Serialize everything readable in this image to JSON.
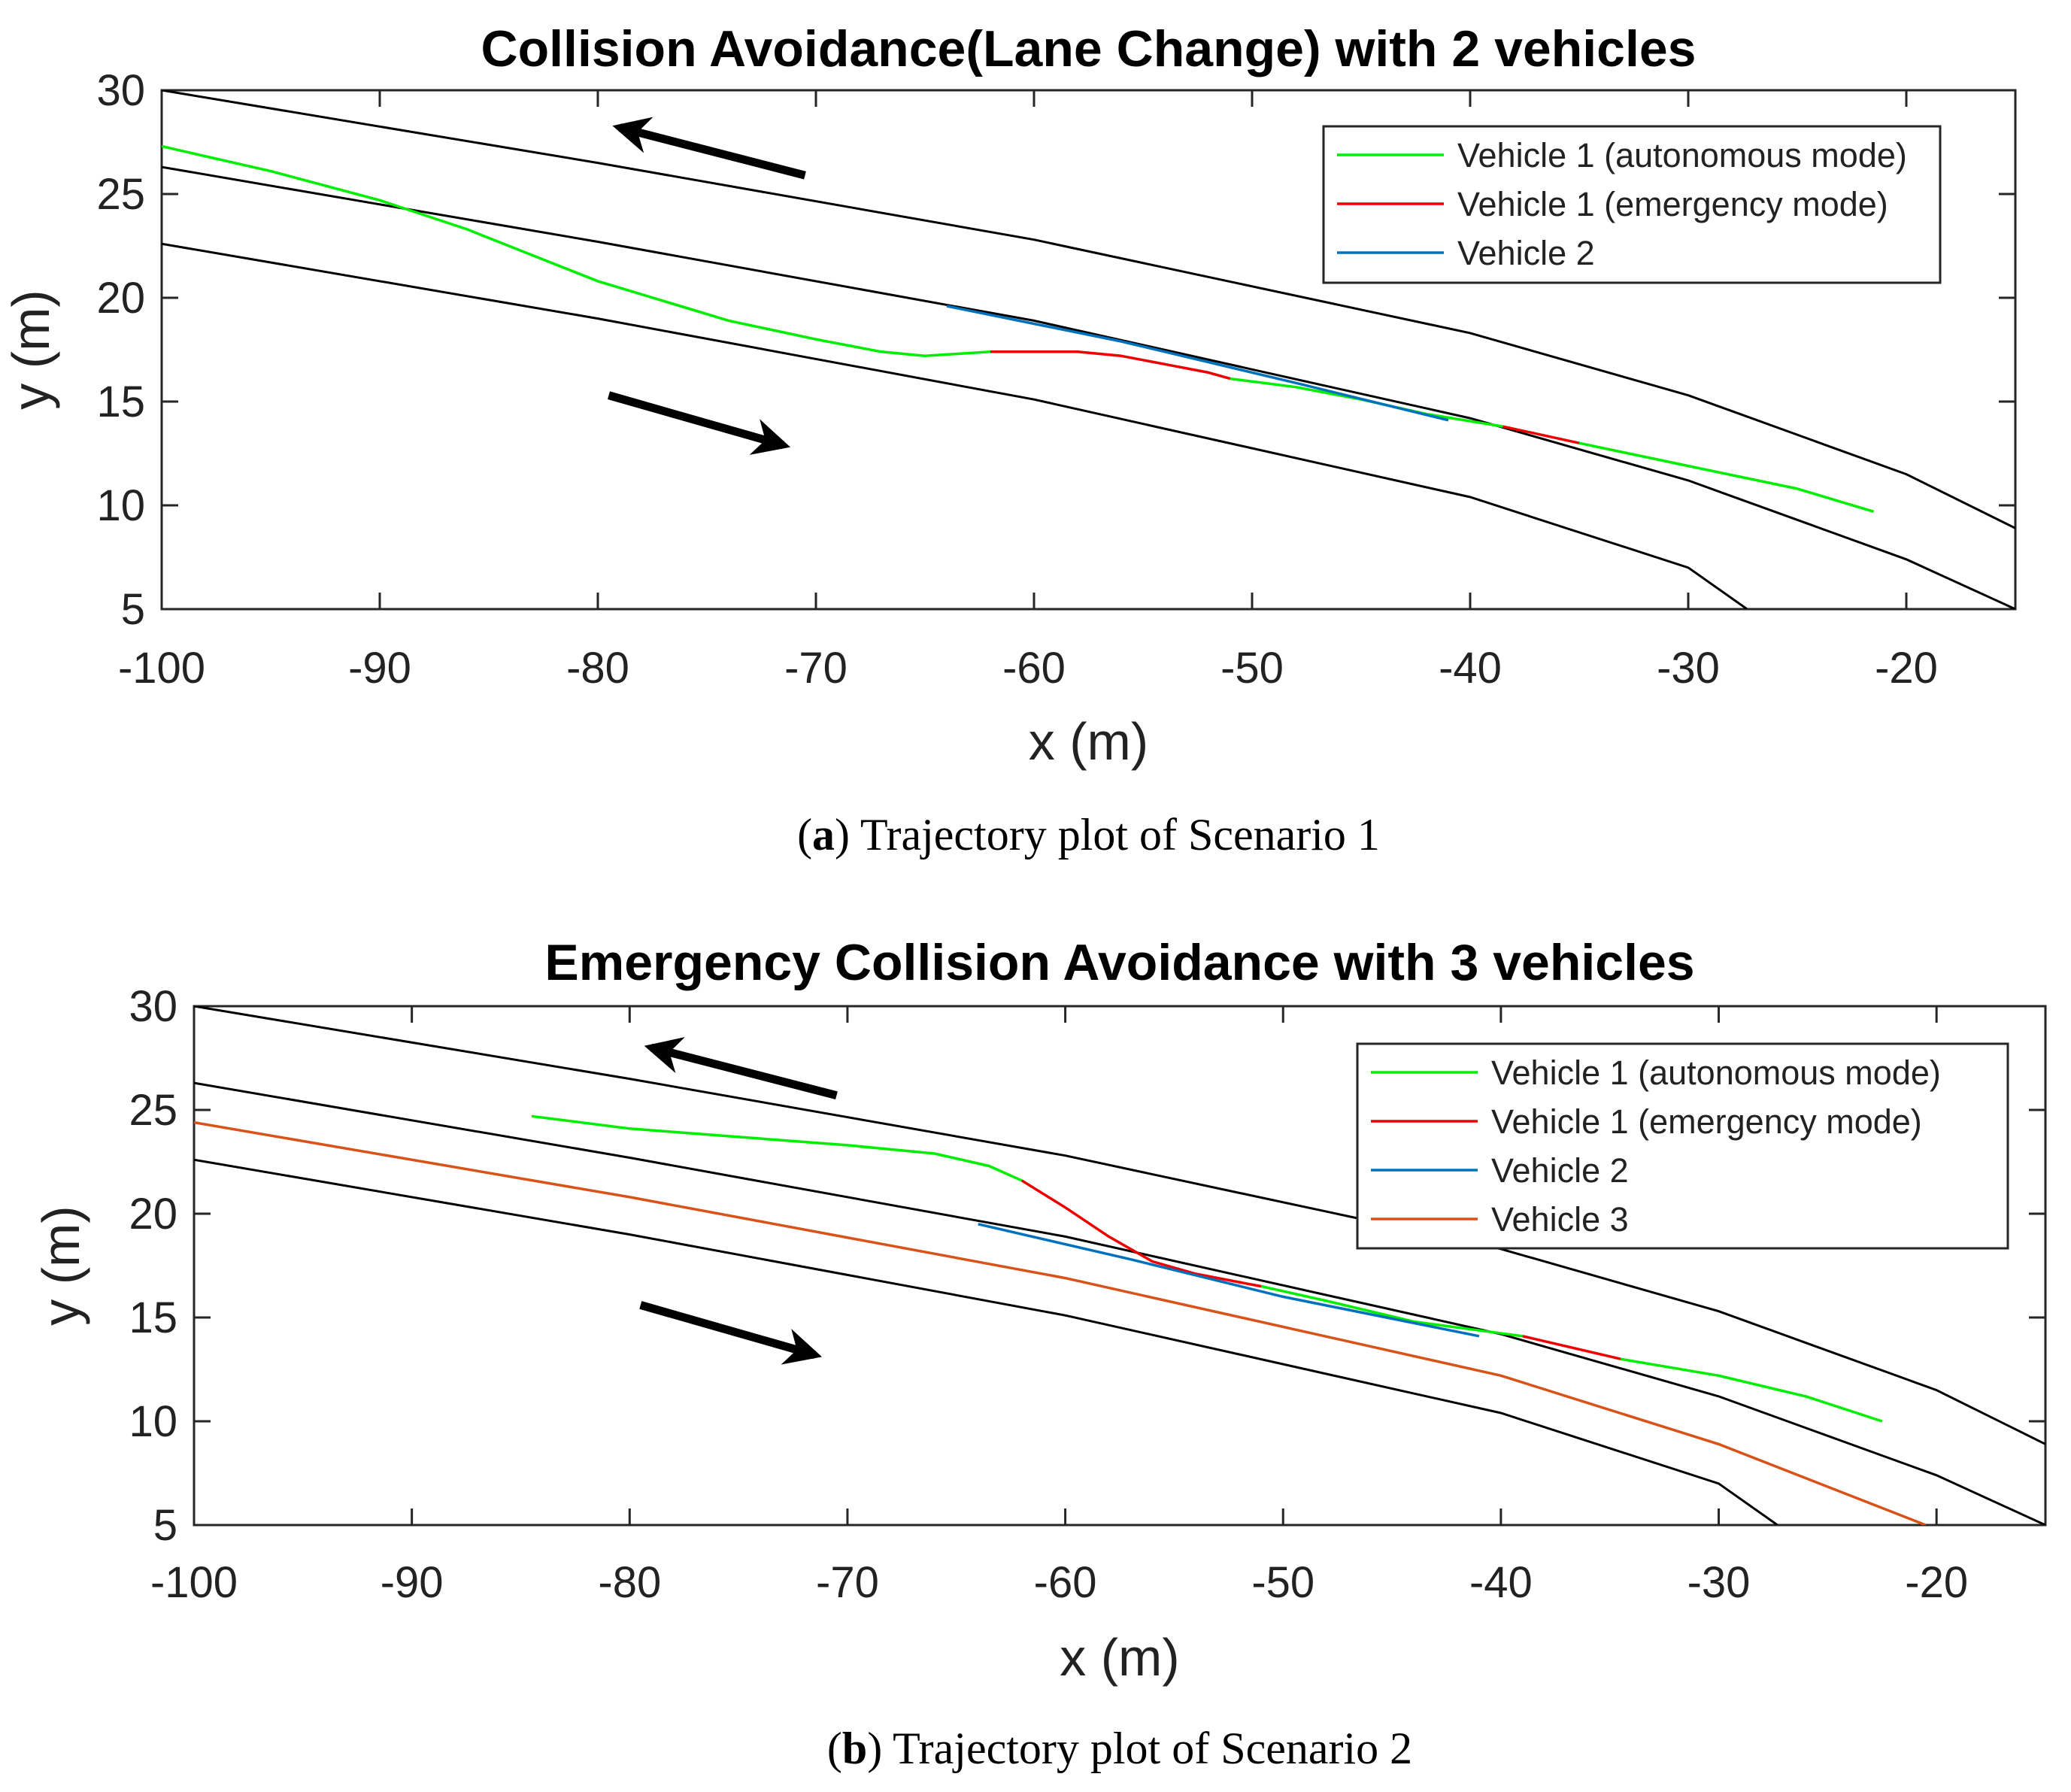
{
  "chart_data": [
    {
      "type": "line",
      "title": "Collision Avoidance(Lane Change) with 2 vehicles",
      "xlabel": "x (m)",
      "ylabel": "y (m)",
      "xlim": [
        -100,
        -15
      ],
      "ylim": [
        5,
        30
      ],
      "xticks": [
        -100,
        -90,
        -80,
        -70,
        -60,
        -50,
        -40,
        -30,
        -20
      ],
      "yticks": [
        5,
        10,
        15,
        20,
        25,
        30
      ],
      "caption_letter": "a",
      "caption_text": "Trajectory plot of Scenario 1",
      "legend": [
        {
          "label": "Vehicle 1 (autonomous mode)",
          "color": "#00ee00"
        },
        {
          "label": "Vehicle 1 (emergency mode)",
          "color": "#ee0000"
        },
        {
          "label": "Vehicle 2",
          "color": "#0072bd"
        }
      ],
      "road_lines": [
        {
          "name": "road-edge-top",
          "points": [
            [
              -100,
              30
            ],
            [
              -80,
              26.5
            ],
            [
              -60,
              22.8
            ],
            [
              -40,
              18.3
            ],
            [
              -30,
              15.3
            ],
            [
              -20,
              11.5
            ],
            [
              -15,
              8.9
            ]
          ]
        },
        {
          "name": "road-center",
          "points": [
            [
              -100,
              26.3
            ],
            [
              -80,
              22.7
            ],
            [
              -60,
              18.9
            ],
            [
              -40,
              14.2
            ],
            [
              -30,
              11.2
            ],
            [
              -20,
              7.4
            ],
            [
              -15,
              5
            ]
          ]
        },
        {
          "name": "road-edge-bottom",
          "points": [
            [
              -100,
              22.6
            ],
            [
              -80,
              19
            ],
            [
              -60,
              15.1
            ],
            [
              -40,
              10.4
            ],
            [
              -30,
              7
            ],
            [
              -27.3,
              5
            ]
          ]
        }
      ],
      "series": [
        {
          "name": "Vehicle 1 (autonomous mode)",
          "color": "#00ee00",
          "points": [
            [
              -100,
              27.3
            ],
            [
              -95,
              26.1
            ],
            [
              -90,
              24.7
            ],
            [
              -86,
              23.3
            ],
            [
              -80,
              20.8
            ],
            [
              -74,
              18.9
            ],
            [
              -70,
              18
            ],
            [
              -67,
              17.4
            ],
            [
              -65,
              17.2
            ],
            [
              -63.5,
              17.3
            ],
            [
              -62,
              17.4
            ]
          ]
        },
        {
          "name": "Vehicle 1 (emergency mode)",
          "color": "#ee0000",
          "points": [
            [
              -62,
              17.4
            ],
            [
              -60,
              17.4
            ],
            [
              -58,
              17.4
            ],
            [
              -56,
              17.2
            ],
            [
              -54,
              16.8
            ],
            [
              -52,
              16.4
            ],
            [
              -51,
              16.1
            ]
          ]
        },
        {
          "name": "Vehicle 1 (autonomous mode)",
          "color": "#00ee00",
          "points": [
            [
              -51,
              16.1
            ],
            [
              -48,
              15.7
            ],
            [
              -45,
              15.1
            ],
            [
              -42,
              14.4
            ],
            [
              -38.5,
              13.8
            ]
          ]
        },
        {
          "name": "Vehicle 1 (emergency mode)",
          "color": "#ee0000",
          "points": [
            [
              -38.5,
              13.8
            ],
            [
              -35,
              13
            ]
          ]
        },
        {
          "name": "Vehicle 1 (autonomous mode)",
          "color": "#00ee00",
          "points": [
            [
              -35,
              13
            ],
            [
              -30,
              11.9
            ],
            [
              -25,
              10.8
            ],
            [
              -21.5,
              9.7
            ]
          ]
        },
        {
          "name": "Vehicle 2",
          "color": "#0072bd",
          "points": [
            [
              -64,
              19.6
            ],
            [
              -56,
              17.9
            ],
            [
              -48,
              15.9
            ],
            [
              -41,
              14.1
            ]
          ]
        }
      ],
      "arrows": [
        {
          "name": "traffic-direction-arrow-left",
          "from": [
            -70.5,
            25.9
          ],
          "to": [
            -79,
            28.2
          ]
        },
        {
          "name": "traffic-direction-arrow-right",
          "from": [
            -79.5,
            15.3
          ],
          "to": [
            -71.5,
            12.9
          ]
        }
      ]
    },
    {
      "type": "line",
      "title": "Emergency Collision Avoidance with 3 vehicles",
      "xlabel": "x (m)",
      "ylabel": "y (m)",
      "xlim": [
        -100,
        -15
      ],
      "ylim": [
        5,
        30
      ],
      "xticks": [
        -100,
        -90,
        -80,
        -70,
        -60,
        -50,
        -40,
        -30,
        -20
      ],
      "yticks": [
        5,
        10,
        15,
        20,
        25,
        30
      ],
      "caption_letter": "b",
      "caption_text": "Trajectory plot of Scenario 2",
      "legend": [
        {
          "label": "Vehicle 1 (autonomous mode)",
          "color": "#00ee00"
        },
        {
          "label": "Vehicle 1 (emergency mode)",
          "color": "#ee0000"
        },
        {
          "label": "Vehicle 2",
          "color": "#0072bd"
        },
        {
          "label": "Vehicle 3",
          "color": "#d95319"
        }
      ],
      "road_lines": [
        {
          "name": "road-edge-top",
          "points": [
            [
              -100,
              30
            ],
            [
              -80,
              26.5
            ],
            [
              -60,
              22.8
            ],
            [
              -40,
              18.3
            ],
            [
              -30,
              15.3
            ],
            [
              -20,
              11.5
            ],
            [
              -15,
              8.9
            ]
          ]
        },
        {
          "name": "road-center",
          "points": [
            [
              -100,
              26.3
            ],
            [
              -80,
              22.7
            ],
            [
              -60,
              18.9
            ],
            [
              -40,
              14.2
            ],
            [
              -30,
              11.2
            ],
            [
              -20,
              7.4
            ],
            [
              -15,
              5
            ]
          ]
        },
        {
          "name": "road-edge-bottom",
          "points": [
            [
              -100,
              22.6
            ],
            [
              -80,
              19
            ],
            [
              -60,
              15.1
            ],
            [
              -40,
              10.4
            ],
            [
              -30,
              7
            ],
            [
              -27.3,
              5
            ]
          ]
        }
      ],
      "series": [
        {
          "name": "Vehicle 1 (autonomous mode)",
          "color": "#00ee00",
          "points": [
            [
              -84.5,
              24.7
            ],
            [
              -80,
              24.1
            ],
            [
              -75,
              23.7
            ],
            [
              -70,
              23.3
            ],
            [
              -66,
              22.9
            ],
            [
              -63.5,
              22.3
            ],
            [
              -62,
              21.6
            ]
          ]
        },
        {
          "name": "Vehicle 1 (emergency mode)",
          "color": "#ee0000",
          "points": [
            [
              -62,
              21.6
            ],
            [
              -60,
              20.3
            ],
            [
              -58,
              18.9
            ],
            [
              -56,
              17.7
            ],
            [
              -54,
              17.1
            ],
            [
              -52,
              16.7
            ],
            [
              -51,
              16.5
            ]
          ]
        },
        {
          "name": "Vehicle 1 (autonomous mode)",
          "color": "#00ee00",
          "points": [
            [
              -51,
              16.5
            ],
            [
              -48,
              15.8
            ],
            [
              -44,
              14.8
            ],
            [
              -39,
              14.1
            ]
          ]
        },
        {
          "name": "Vehicle 1 (emergency mode)",
          "color": "#ee0000",
          "points": [
            [
              -39,
              14.1
            ],
            [
              -34.5,
              13
            ]
          ]
        },
        {
          "name": "Vehicle 1 (autonomous mode)",
          "color": "#00ee00",
          "points": [
            [
              -34.5,
              13
            ],
            [
              -30,
              12.2
            ],
            [
              -26,
              11.2
            ],
            [
              -22.5,
              10
            ]
          ]
        },
        {
          "name": "Vehicle 2",
          "color": "#0072bd",
          "points": [
            [
              -64,
              19.5
            ],
            [
              -57,
              17.8
            ],
            [
              -50,
              16
            ],
            [
              -41,
              14.1
            ]
          ]
        },
        {
          "name": "Vehicle 3",
          "color": "#d95319",
          "points": [
            [
              -100,
              24.4
            ],
            [
              -80,
              20.8
            ],
            [
              -60,
              16.9
            ],
            [
              -40,
              12.2
            ],
            [
              -30,
              8.9
            ],
            [
              -20.5,
              5
            ]
          ]
        }
      ],
      "arrows": [
        {
          "name": "traffic-direction-arrow-left",
          "from": [
            -70.5,
            25.7
          ],
          "to": [
            -79,
            28
          ]
        },
        {
          "name": "traffic-direction-arrow-right",
          "from": [
            -79.5,
            15.6
          ],
          "to": [
            -71.5,
            13.2
          ]
        }
      ]
    }
  ]
}
